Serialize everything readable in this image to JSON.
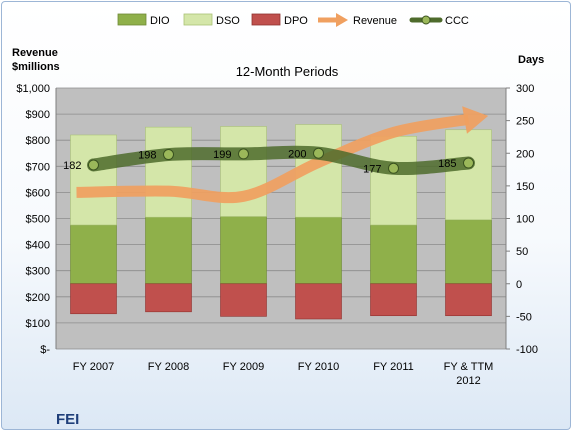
{
  "company": "FEI",
  "colors": {
    "dio": "#8fb04a",
    "dso": "#d4e6a9",
    "dpo": "#c0504d",
    "revenue": "#f0a060",
    "ccc": "#4e6b2c",
    "plot_bg": "#bfbfbf"
  },
  "chart_data": {
    "type": "bar",
    "title": "12-Month Periods",
    "left_axis_title": "Revenue\n$millions",
    "right_axis_title": "Days",
    "categories": [
      "FY 2007",
      "FY 2008",
      "FY 2009",
      "FY 2010",
      "FY 2011",
      "FY & TTM\n2012"
    ],
    "left_ticks": [
      "$-",
      "$100",
      "$200",
      "$300",
      "$400",
      "$500",
      "$600",
      "$700",
      "$800",
      "$900",
      "$1,000"
    ],
    "right_ticks": [
      "-100",
      "-50",
      "0",
      "50",
      "100",
      "150",
      "200",
      "250",
      "300"
    ],
    "ylim_left": [
      0,
      1000
    ],
    "ylim_right": [
      -100,
      300
    ],
    "legend": [
      "DIO",
      "DSO",
      "DPO",
      "Revenue",
      "CCC"
    ],
    "legend_position": "top",
    "series": [
      {
        "name": "DIO",
        "kind": "stacked-bar",
        "axis": "right",
        "values": [
          90,
          102,
          103,
          102,
          90,
          98
        ]
      },
      {
        "name": "DSO",
        "kind": "stacked-bar",
        "axis": "right",
        "values": [
          138,
          138,
          138,
          142,
          136,
          138
        ]
      },
      {
        "name": "DPO",
        "kind": "negative-bar",
        "axis": "right",
        "values": [
          -46,
          -43,
          -50,
          -54,
          -49,
          -49
        ]
      },
      {
        "name": "Revenue",
        "kind": "arrow-line",
        "axis": "left",
        "values": [
          600,
          605,
          585,
          715,
          830,
          880
        ]
      },
      {
        "name": "CCC",
        "kind": "line",
        "axis": "right",
        "values": [
          182,
          198,
          199,
          200,
          177,
          185
        ]
      }
    ],
    "ccc_labels": [
      "182",
      "198",
      "199",
      "200",
      "177",
      "185"
    ]
  }
}
